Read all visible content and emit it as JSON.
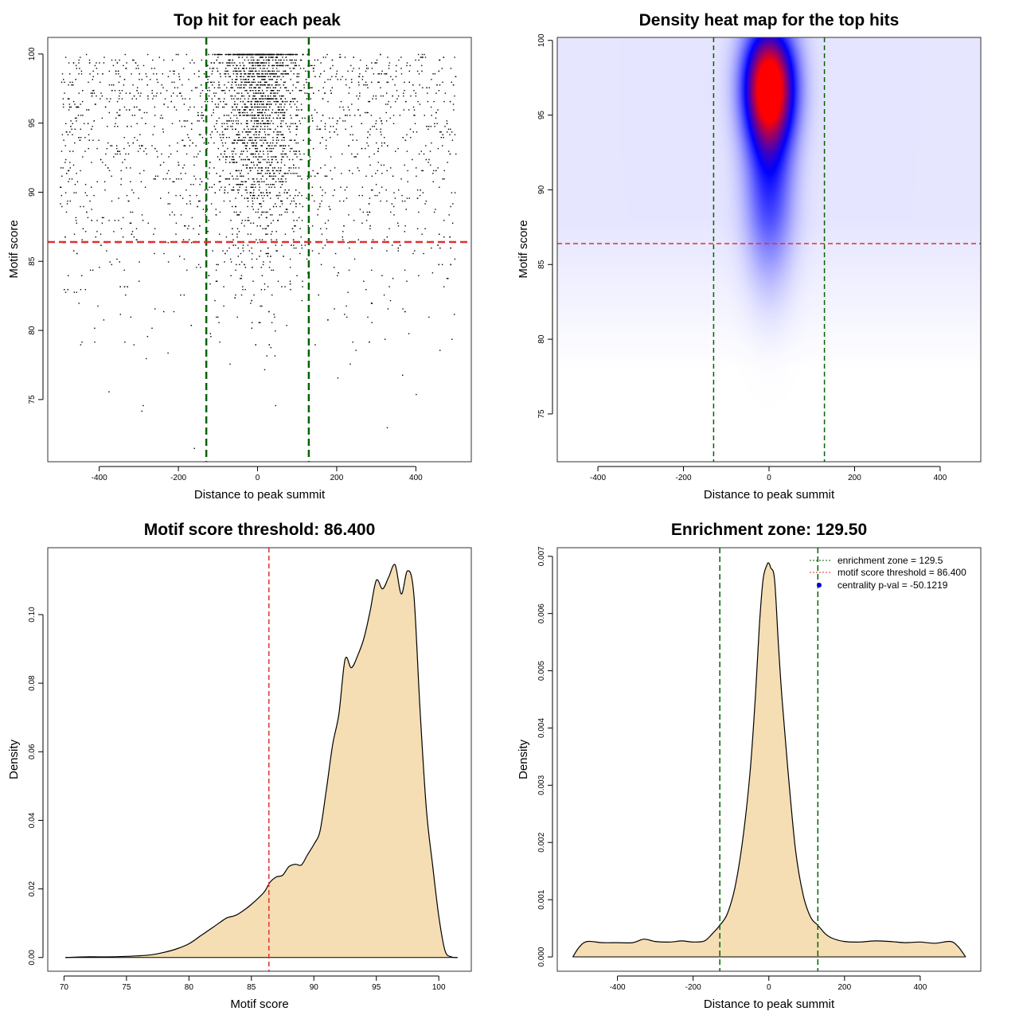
{
  "chart_data": [
    {
      "id": "scatter",
      "type": "scatter",
      "title": "Top hit for each peak",
      "xlabel": "Distance to peak summit",
      "ylabel": "Motif score",
      "xlim": [
        -530,
        540
      ],
      "ylim": [
        70.5,
        101.2
      ],
      "xticks": [
        -400,
        -200,
        0,
        200,
        400
      ],
      "xtick_labels": [
        "-400",
        "-200",
        "0",
        "200",
        "400"
      ],
      "yticks": [
        75,
        80,
        85,
        90,
        95,
        100
      ],
      "ytick_labels": [
        "75",
        "80",
        "85",
        "90",
        "95",
        "100"
      ],
      "vlines": [
        -129.5,
        129.5
      ],
      "hline": 86.4,
      "point_count": 3600,
      "colors": {
        "points": "#000000",
        "zone": "#006400",
        "threshold": "#e03030"
      }
    },
    {
      "id": "heatmap",
      "type": "heatmap",
      "title": "Density heat map for the top hits",
      "xlabel": "Distance to peak summit",
      "ylabel": "Motif score",
      "xlim": [
        -495,
        495
      ],
      "ylim": [
        71.8,
        100.2
      ],
      "xticks": [
        -400,
        -200,
        0,
        200,
        400
      ],
      "xtick_labels": [
        "-400",
        "-200",
        "0",
        "200",
        "400"
      ],
      "yticks": [
        75,
        80,
        85,
        90,
        95,
        100
      ],
      "ytick_labels": [
        "75",
        "80",
        "85",
        "90",
        "95",
        "100"
      ],
      "vlines": [
        -129.5,
        129.5
      ],
      "hline": 86.4,
      "peak": {
        "x": 0,
        "y": 97
      },
      "colors": {
        "low": "#ffffff",
        "mid": "#0000ff",
        "high": "#ff0000",
        "zone": "#006400",
        "threshold": "#e03030"
      }
    },
    {
      "id": "score_density",
      "type": "area",
      "title": "Motif score threshold: 86.400",
      "xlabel": "Motif score",
      "ylabel": "Density",
      "xlim": [
        68.7,
        102.6
      ],
      "ylim": [
        -0.004,
        0.1195
      ],
      "xticks": [
        70,
        75,
        80,
        85,
        90,
        95,
        100
      ],
      "xtick_labels": [
        "70",
        "75",
        "80",
        "85",
        "90",
        "95",
        "100"
      ],
      "yticks": [
        0,
        0.02,
        0.04,
        0.06,
        0.08,
        0.1
      ],
      "ytick_labels": [
        "0.00",
        "0.02",
        "0.04",
        "0.06",
        "0.08",
        "0.10"
      ],
      "vline": 86.4,
      "x": [
        70.1,
        72,
        74,
        76,
        77,
        78,
        79,
        80,
        81,
        82,
        83,
        83.5,
        84,
        85,
        86,
        86.5,
        87,
        87.5,
        88,
        88.5,
        89,
        89.5,
        90,
        90.5,
        91,
        91.5,
        92,
        92.5,
        93,
        93.5,
        94,
        94.5,
        95,
        95.5,
        96,
        96.5,
        97,
        97.5,
        98,
        98.5,
        99,
        99.5,
        100,
        100.5,
        101,
        101.5
      ],
      "y": [
        0.0,
        0.0002,
        0.0002,
        0.0005,
        0.0008,
        0.0015,
        0.0025,
        0.004,
        0.0065,
        0.009,
        0.0115,
        0.012,
        0.0128,
        0.0155,
        0.019,
        0.022,
        0.0235,
        0.024,
        0.0265,
        0.0272,
        0.027,
        0.03,
        0.033,
        0.037,
        0.049,
        0.062,
        0.071,
        0.087,
        0.0845,
        0.088,
        0.093,
        0.101,
        0.11,
        0.1075,
        0.111,
        0.1145,
        0.106,
        0.1128,
        0.106,
        0.072,
        0.0435,
        0.027,
        0.012,
        0.002,
        0.0002,
        0.0
      ],
      "colors": {
        "fill": "#f5deb3",
        "line": "#000000",
        "threshold": "#e03030"
      }
    },
    {
      "id": "distance_density",
      "type": "area",
      "title": "Enrichment zone: 129.50",
      "xlabel": "Distance to peak summit",
      "ylabel": "Density",
      "xlim": [
        -559,
        560
      ],
      "ylim": [
        -0.00025,
        0.00715
      ],
      "xticks": [
        -400,
        -200,
        0,
        200,
        400
      ],
      "xtick_labels": [
        "-400",
        "-200",
        "0",
        "200",
        "400"
      ],
      "yticks": [
        0,
        0.001,
        0.002,
        0.003,
        0.004,
        0.005,
        0.006,
        0.007
      ],
      "ytick_labels": [
        "0.000",
        "0.001",
        "0.002",
        "0.003",
        "0.004",
        "0.005",
        "0.006",
        "0.007"
      ],
      "vlines": [
        -129.5,
        129.5
      ],
      "x": [
        -518,
        -500,
        -480,
        -440,
        -400,
        -360,
        -330,
        -300,
        -260,
        -230,
        -200,
        -170,
        -150,
        -130,
        -110,
        -90,
        -70,
        -50,
        -35,
        -25,
        -15,
        -5,
        0,
        5,
        15,
        25,
        35,
        50,
        70,
        90,
        110,
        130,
        150,
        170,
        200,
        240,
        280,
        320,
        360,
        400,
        440,
        480,
        500,
        520
      ],
      "y": [
        0.0,
        0.00018,
        0.00027,
        0.00025,
        0.00025,
        0.00025,
        0.00031,
        0.00027,
        0.00026,
        0.00028,
        0.00026,
        0.00028,
        0.0004,
        0.00055,
        0.00075,
        0.0012,
        0.002,
        0.0032,
        0.0046,
        0.0058,
        0.0066,
        0.00685,
        0.00688,
        0.0068,
        0.0066,
        0.0055,
        0.0045,
        0.0033,
        0.0019,
        0.0011,
        0.0007,
        0.00055,
        0.0004,
        0.00032,
        0.00027,
        0.00026,
        0.00028,
        0.00027,
        0.00025,
        0.00026,
        0.00024,
        0.00027,
        0.00018,
        0.0
      ],
      "legend": [
        {
          "label": "enrichment zone = 129.5",
          "style": "dotted",
          "color": "#006400"
        },
        {
          "label": "motif score threshold = 86.400",
          "style": "dotted",
          "color": "#e03030"
        },
        {
          "label": "centrality p-val = -50.1219",
          "style": "point",
          "color": "#0000cc"
        }
      ],
      "colors": {
        "fill": "#f5deb3",
        "line": "#000000",
        "zone": "#006400"
      }
    }
  ]
}
